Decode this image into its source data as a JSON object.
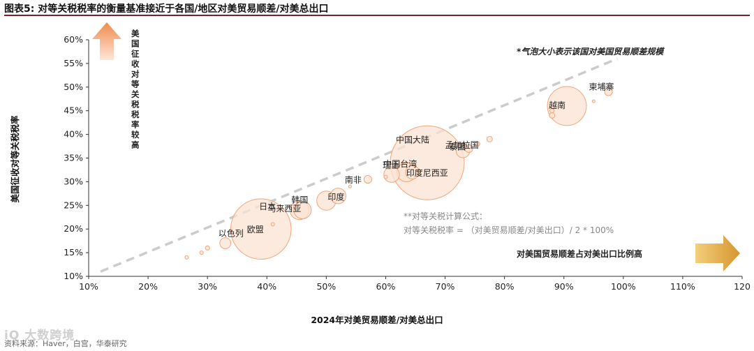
{
  "figure": {
    "title": "图表5:  对等关税税率的衡量基准接近于各国/地区对美贸易顺差/对美总出口",
    "source": "资料来源：Haver，白宫，华泰研究",
    "watermark": "iQ 大数跨境"
  },
  "chart_data": {
    "type": "scatter",
    "bubble": true,
    "xlabel": "2024年对美贸易顺差/对美总出口",
    "ylabel": "美国征收对等关税税率",
    "xlim": [
      10,
      120
    ],
    "ylim": [
      10,
      60
    ],
    "xticks": [
      10,
      20,
      30,
      40,
      50,
      60,
      70,
      80,
      90,
      100,
      110,
      120
    ],
    "yticks": [
      10,
      15,
      20,
      25,
      30,
      35,
      40,
      45,
      50,
      55,
      60
    ],
    "xtick_labels": [
      "10%",
      "20%",
      "30%",
      "40%",
      "50%",
      "60%",
      "70%",
      "80%",
      "90%",
      "100%",
      "110%",
      "120"
    ],
    "ytick_labels": [
      "10%",
      "15%",
      "20%",
      "25%",
      "30%",
      "35%",
      "40%",
      "45%",
      "50%",
      "55%",
      "60%"
    ],
    "grid": false,
    "points": [
      {
        "label": "以色列",
        "x": 33.0,
        "y": 17.0,
        "size": 2
      },
      {
        "label": "欧盟",
        "x": 39.0,
        "y": 20.0,
        "size": 60
      },
      {
        "label": "马来西亚",
        "x": 46.0,
        "y": 24.0,
        "size": 5
      },
      {
        "label": "日本",
        "x": 45.5,
        "y": 24.0,
        "size": 6
      },
      {
        "label": "韩国",
        "x": 50.0,
        "y": 26.0,
        "size": 6
      },
      {
        "label": "印度",
        "x": 52.0,
        "y": 27.0,
        "size": 4
      },
      {
        "label": "南非",
        "x": 57.0,
        "y": 30.5,
        "size": 1
      },
      {
        "label": "瑞士",
        "x": 61.0,
        "y": 31.5,
        "size": 4
      },
      {
        "label": "中国台湾",
        "x": 63.5,
        "y": 32.0,
        "size": 6
      },
      {
        "label": "印度尼西亚",
        "x": 64.5,
        "y": 32.0,
        "size": 3
      },
      {
        "label": "中国大陆",
        "x": 67.0,
        "y": 34.0,
        "size": 90
      },
      {
        "label": "泰国",
        "x": 73.0,
        "y": 36.5,
        "size": 3
      },
      {
        "label": "孟加拉国",
        "x": 74.0,
        "y": 37.0,
        "size": 1
      },
      {
        "label": "",
        "x": 75.5,
        "y": 38.0,
        "size": 0.3
      },
      {
        "label": "",
        "x": 77.5,
        "y": 39.0,
        "size": 0.5
      },
      {
        "label": "越南",
        "x": 90.5,
        "y": 46.0,
        "size": 25
      },
      {
        "label": "",
        "x": 88.0,
        "y": 44.0,
        "size": 0.5
      },
      {
        "label": "",
        "x": 88.0,
        "y": 45.0,
        "size": 0.3
      },
      {
        "label": "柬埔寨",
        "x": 97.5,
        "y": 49.0,
        "size": 1
      },
      {
        "label": "",
        "x": 95.0,
        "y": 47.0,
        "size": 0.1
      },
      {
        "label": "",
        "x": 30.0,
        "y": 16.0,
        "size": 0.3
      },
      {
        "label": "",
        "x": 29.0,
        "y": 15.0,
        "size": 0.2
      },
      {
        "label": "",
        "x": 26.5,
        "y": 14.0,
        "size": 0.2
      },
      {
        "label": "",
        "x": 41.0,
        "y": 21.0,
        "size": 0.2
      },
      {
        "label": "",
        "x": 54.0,
        "y": 29.0,
        "size": 0.1
      },
      {
        "label": "",
        "x": 60.0,
        "y": 31.0,
        "size": 0.2
      }
    ],
    "trendline": {
      "style": "dashed",
      "x": [
        12,
        99
      ],
      "y": [
        11,
        56
      ]
    },
    "annotations": {
      "bubble_note": "*气泡大小表示该国对美国贸易顺差规模",
      "formula_title": "**对等关税计算公式：",
      "formula": "对等关税税率 = （对美贸易顺差/对美出口）/ 2 * 100%",
      "x_arrow_text": "对美国贸易顺差占对美出口比例高",
      "y_arrow_text": "美国征收对等关税税率较高"
    },
    "colors": {
      "bubble_fill": "#fbe3d3",
      "bubble_stroke": "#f0a679",
      "trendline": "#cccccc",
      "arrow_gold": "#e0a640",
      "arrow_up_top": "#f08a4e",
      "arrow_up_bottom": "#fde6d8",
      "axis": "#333333",
      "title_rule": "#7a1f2b"
    }
  }
}
